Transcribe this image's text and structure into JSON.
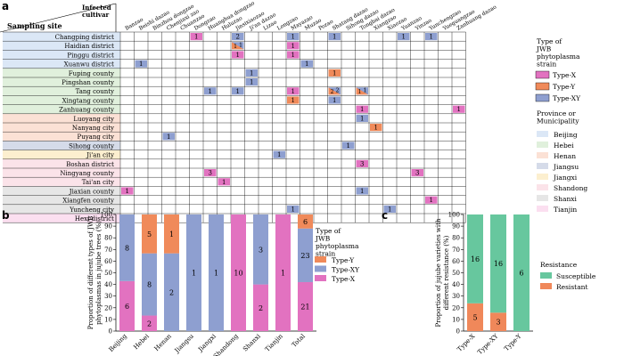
{
  "colors": {
    "type_x": "#e272c0",
    "type_y": "#f08a5a",
    "type_xy": "#8e9fd0",
    "susceptible": "#67c79e",
    "resistant": "#f0885a",
    "text": "#000000"
  },
  "panel_a": {
    "label": "a",
    "corner_top": "Infected\ncultivar",
    "corner_bottom": "Sampling site",
    "cultivars": [
      "Banzao",
      "Beishi dazao",
      "Binzhou dongzao",
      "Chenjiaxi zao",
      "Chuanzao",
      "Dongzao",
      "Huanghua dongzao",
      "Huluzao",
      "Jinsixiaozao",
      "Ji'an dazao",
      "Lizao",
      "Longzao",
      "Mayazao",
      "Muzao",
      "Pozao",
      "Shatang dazao",
      "Sihong dazao",
      "Tongbai dazao",
      "Xiangzao",
      "Xiaozao",
      "Yuanzao",
      "Yinzao",
      "Yunchengzao",
      "Yueguangzao",
      "Zanhuang dazao"
    ],
    "rows": [
      {
        "site": "Changping district",
        "province": "Beijing"
      },
      {
        "site": "Haidian district",
        "province": "Beijing"
      },
      {
        "site": "Pinggu district",
        "province": "Beijing"
      },
      {
        "site": "Xuanwu district",
        "province": "Beijing"
      },
      {
        "site": "Fuping county",
        "province": "Hebei"
      },
      {
        "site": "Pingshan county",
        "province": "Hebei"
      },
      {
        "site": "Tang county",
        "province": "Hebei"
      },
      {
        "site": "Xingtang county",
        "province": "Hebei"
      },
      {
        "site": "Zanhuang county",
        "province": "Hebei"
      },
      {
        "site": "Luoyang city",
        "province": "Henan"
      },
      {
        "site": "Nanyang city",
        "province": "Henan"
      },
      {
        "site": "Puyang city",
        "province": "Henan"
      },
      {
        "site": "Sihong county",
        "province": "Jiangsu"
      },
      {
        "site": "Ji'an city",
        "province": "Jiangxi"
      },
      {
        "site": "Boshan district",
        "province": "Shandong"
      },
      {
        "site": "Ningyang county",
        "province": "Shandong"
      },
      {
        "site": "Tai'an city",
        "province": "Shandong"
      },
      {
        "site": "Jiaxian county",
        "province": "Shanxi"
      },
      {
        "site": "Xiangfen county",
        "province": "Shanxi"
      },
      {
        "site": "Yuncheng city",
        "province": "Shanxi"
      },
      {
        "site": "Hexi district",
        "province": "Tianjin"
      }
    ],
    "cells": [
      {
        "row": 0,
        "col": 5,
        "type": "X",
        "value": "1"
      },
      {
        "row": 0,
        "col": 8,
        "type": "XY",
        "value": "2"
      },
      {
        "row": 0,
        "col": 12,
        "type": "XY",
        "value": "1"
      },
      {
        "row": 0,
        "col": 15,
        "type": "XY",
        "value": "1"
      },
      {
        "row": 0,
        "col": 20,
        "type": "XY",
        "value": "1"
      },
      {
        "row": 0,
        "col": 22,
        "type": "XY",
        "value": "1"
      },
      {
        "row": 1,
        "col": 8,
        "type": "split",
        "x": "1",
        "y": "1"
      },
      {
        "row": 1,
        "col": 12,
        "type": "X",
        "value": "1"
      },
      {
        "row": 2,
        "col": 8,
        "type": "X",
        "value": "1"
      },
      {
        "row": 2,
        "col": 12,
        "type": "X",
        "value": "1"
      },
      {
        "row": 3,
        "col": 1,
        "type": "XY",
        "value": "1"
      },
      {
        "row": 3,
        "col": 13,
        "type": "XY",
        "value": "1"
      },
      {
        "row": 4,
        "col": 9,
        "type": "XY",
        "value": "1"
      },
      {
        "row": 4,
        "col": 15,
        "type": "Y",
        "value": "1"
      },
      {
        "row": 5,
        "col": 9,
        "type": "XY",
        "value": "1"
      },
      {
        "row": 6,
        "col": 6,
        "type": "XY",
        "value": "1"
      },
      {
        "row": 6,
        "col": 8,
        "type": "XY",
        "value": "1"
      },
      {
        "row": 6,
        "col": 12,
        "type": "X",
        "value": "1"
      },
      {
        "row": 6,
        "col": 15,
        "type": "split",
        "x": "2",
        "y": "2"
      },
      {
        "row": 6,
        "col": 17,
        "type": "split",
        "x": "1",
        "y": "1"
      },
      {
        "row": 7,
        "col": 12,
        "type": "Y",
        "value": "1"
      },
      {
        "row": 7,
        "col": 15,
        "type": "XY",
        "value": "1"
      },
      {
        "row": 8,
        "col": 24,
        "type": "X",
        "value": "1"
      },
      {
        "row": 8,
        "col": 17,
        "type": "X",
        "value": "1"
      },
      {
        "row": 9,
        "col": 17,
        "type": "XY",
        "value": "1"
      },
      {
        "row": 10,
        "col": 18,
        "type": "Y",
        "value": "1"
      },
      {
        "row": 11,
        "col": 3,
        "type": "XY",
        "value": "1"
      },
      {
        "row": 12,
        "col": 16,
        "type": "XY",
        "value": "1"
      },
      {
        "row": 13,
        "col": 11,
        "type": "XY",
        "value": "1"
      },
      {
        "row": 14,
        "col": 17,
        "type": "X",
        "value": "3"
      },
      {
        "row": 15,
        "col": 6,
        "type": "X",
        "value": "3"
      },
      {
        "row": 15,
        "col": 21,
        "type": "X",
        "value": "3"
      },
      {
        "row": 16,
        "col": 7,
        "type": "X",
        "value": "1"
      },
      {
        "row": 17,
        "col": 0,
        "type": "X",
        "value": "1"
      },
      {
        "row": 17,
        "col": 17,
        "type": "XY",
        "value": "1"
      },
      {
        "row": 18,
        "col": 22,
        "type": "X",
        "value": "1"
      },
      {
        "row": 19,
        "col": 12,
        "type": "XY",
        "value": "1"
      },
      {
        "row": 19,
        "col": 19,
        "type": "XY",
        "value": "1"
      },
      {
        "row": 20,
        "col": 8,
        "type": "X",
        "value": "1"
      }
    ],
    "strain_legend": {
      "title": "Type of\nJWB\nphytoplasma\nstrain",
      "items": [
        {
          "label": "Type-X",
          "key": "X"
        },
        {
          "label": "Type-Y",
          "key": "Y"
        },
        {
          "label": "Type-XY",
          "key": "XY"
        }
      ]
    },
    "province_legend": {
      "title": "Province or\nMunicipality",
      "items": [
        {
          "label": "Beijing",
          "color": "#dbe7f6"
        },
        {
          "label": "Hebei",
          "color": "#e0f0dc"
        },
        {
          "label": "Henan",
          "color": "#fbe1d5"
        },
        {
          "label": "Jiangsu",
          "color": "#d5dbe9"
        },
        {
          "label": "Jiangxi",
          "color": "#fcefcf"
        },
        {
          "label": "Shandong",
          "color": "#fbe3e9"
        },
        {
          "label": "Shanxi",
          "color": "#e6e6e6"
        },
        {
          "label": "Tianjin",
          "color": "#fbdff0"
        }
      ]
    }
  },
  "chart_data": [
    {
      "panel": "b",
      "type": "bar",
      "stacked": true,
      "ylabel": "Proportion of different types of JWB\nphytoplasmas in jujube trees (%)",
      "ylim": [
        0,
        100
      ],
      "yticks": [
        0,
        10,
        20,
        30,
        40,
        50,
        60,
        70,
        80,
        90,
        100
      ],
      "categories": [
        "Beijing",
        "Hebei",
        "Henan",
        "Jiangsu",
        "Jiangxi",
        "Shandong",
        "Shanxi",
        "Tianjin",
        "Total"
      ],
      "series": [
        {
          "name": "Type-X",
          "key": "X",
          "values": [
            6,
            2,
            0,
            0,
            0,
            10,
            2,
            1,
            21
          ]
        },
        {
          "name": "Type-XY",
          "key": "XY",
          "values": [
            8,
            8,
            2,
            1,
            1,
            0,
            3,
            0,
            23
          ]
        },
        {
          "name": "Type-Y",
          "key": "Y",
          "values": [
            0,
            5,
            1,
            0,
            0,
            0,
            0,
            0,
            6
          ]
        }
      ],
      "legend": {
        "title": "Type of\nJWB\nphytoplasma\nstrain",
        "placement": "right"
      }
    },
    {
      "panel": "c",
      "type": "bar",
      "stacked": true,
      "ylabel": "Proportion of jujube varieties with\ndifferent resistance (%)",
      "ylim": [
        0,
        100
      ],
      "yticks": [
        0,
        10,
        20,
        30,
        40,
        50,
        60,
        70,
        80,
        90,
        100
      ],
      "categories": [
        "Type-X",
        "Type-XY",
        "Type-Y"
      ],
      "series": [
        {
          "name": "Resistant",
          "key": "resistant",
          "values": [
            5,
            3,
            0
          ]
        },
        {
          "name": "Susceptible",
          "key": "susceptible",
          "values": [
            16,
            16,
            6
          ]
        }
      ],
      "legend": {
        "title": "Resistance",
        "placement": "right"
      }
    }
  ]
}
